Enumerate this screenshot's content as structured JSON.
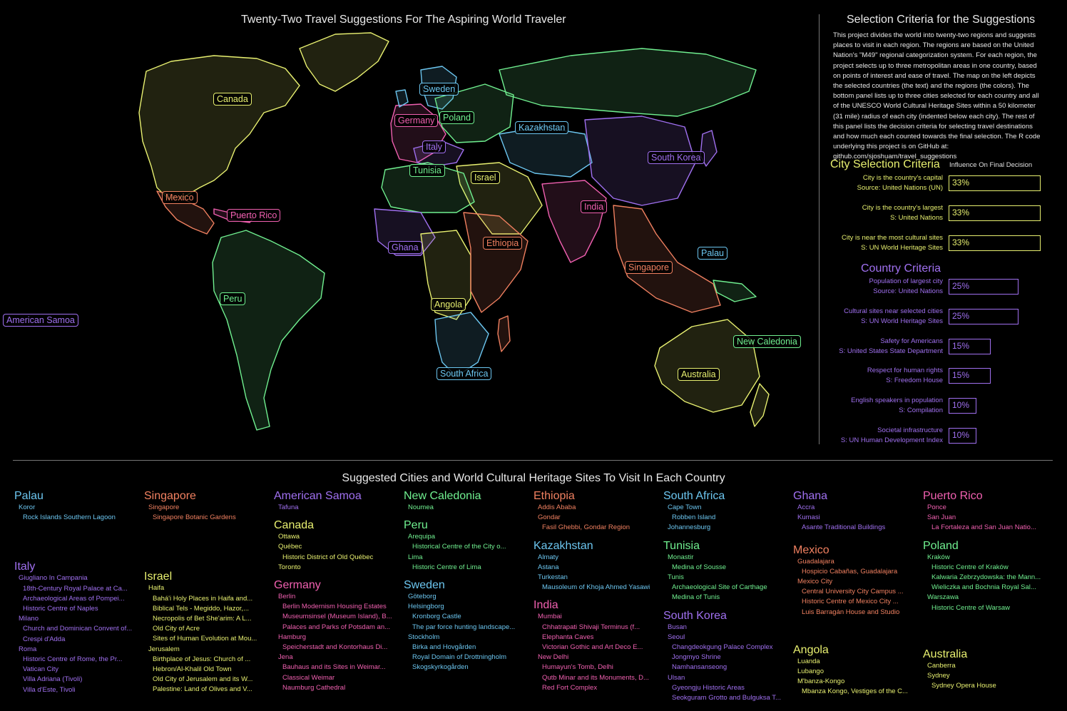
{
  "map": {
    "title": "Twenty-Two Travel Suggestions For The Aspiring World Traveler",
    "labels": [
      {
        "text": "Canada",
        "color": "#e8f070"
      },
      {
        "text": "Sweden",
        "color": "#6cc6f0"
      },
      {
        "text": "Germany",
        "color": "#f060b0"
      },
      {
        "text": "Poland",
        "color": "#70f090"
      },
      {
        "text": "Kazakhstan",
        "color": "#6cc6f0"
      },
      {
        "text": "Italy",
        "color": "#a070f0"
      },
      {
        "text": "South Korea",
        "color": "#a070f0"
      },
      {
        "text": "Tunisia",
        "color": "#70f090"
      },
      {
        "text": "Israel",
        "color": "#e8f070"
      },
      {
        "text": "Mexico",
        "color": "#f08060"
      },
      {
        "text": "Puerto Rico",
        "color": "#f060b0"
      },
      {
        "text": "India",
        "color": "#f060b0"
      },
      {
        "text": "Ghana",
        "color": "#a070f0"
      },
      {
        "text": "Ethiopia",
        "color": "#f08060"
      },
      {
        "text": "Palau",
        "color": "#6cc6f0"
      },
      {
        "text": "Singapore",
        "color": "#f08060"
      },
      {
        "text": "Peru",
        "color": "#70f090"
      },
      {
        "text": "Angola",
        "color": "#e8f070"
      },
      {
        "text": "American Samoa",
        "color": "#a070f0"
      },
      {
        "text": "New Caledonia",
        "color": "#70f090"
      },
      {
        "text": "Australia",
        "color": "#e8f070"
      },
      {
        "text": "South Africa",
        "color": "#6cc6f0"
      }
    ]
  },
  "panel": {
    "title": "Selection Criteria for the Suggestions",
    "description": "This project divides the world into twenty-two regions and suggests places to visit in each region.  The regions are based on the United Nation's \"M49\" regional categorization system.  For each region, the project selects up to three metropolitan areas in one country, based on points of interest and ease of travel.  The map on the left depicts the selected countries (the text) and the regions (the colors).  The bottom panel lists up to three cities selected for each country and all of the UNESCO World Cultural Heritage Sites within a 50 kilometer (31 mile) radius of each city (indented below each city).  The rest of this panel lists the decision criteria for selecting travel destinations and how much each counted towards the final selection. The R code underlying this project is on GitHub at: github.com/sjoshuam/travel_suggestions",
    "influence_header": "Influence On Final Decision",
    "city_criteria": {
      "title": "City Selection Criteria",
      "color": "#e8f070",
      "items": [
        {
          "line1": "City is the country's capital",
          "line2": "Source: United Nations (UN)",
          "value": "33%",
          "pct": 33
        },
        {
          "line1": "City is the country's largest",
          "line2": "S: United Nations",
          "value": "33%",
          "pct": 33
        },
        {
          "line1": "City is near the most cultural sites",
          "line2": "S: UN World Heritage Sites",
          "value": "33%",
          "pct": 33
        }
      ]
    },
    "country_criteria": {
      "title": "Country Criteria",
      "color": "#a070f0",
      "items": [
        {
          "line1": "Population of largest city",
          "line2": "Source: United Nations",
          "value": "25%",
          "pct": 25
        },
        {
          "line1": "Cultural sites near selected cities",
          "line2": "S: UN World Heritage Sites",
          "value": "25%",
          "pct": 25
        },
        {
          "line1": "Safety for Americans",
          "line2": "S: United States State Department",
          "value": "15%",
          "pct": 15
        },
        {
          "line1": "Respect for human rights",
          "line2": "S: Freedom House",
          "value": "15%",
          "pct": 15
        },
        {
          "line1": "English speakers in population",
          "line2": "S: Compilation",
          "value": "10%",
          "pct": 10
        },
        {
          "line1": "Societal infrastructure",
          "line2": "S: UN Human Development Index",
          "value": "10%",
          "pct": 10
        }
      ]
    }
  },
  "bottom": {
    "title": "Suggested Cities and World Cultural Heritage Sites To Visit In Each Country",
    "columns": [
      [
        {
          "name": "Palau",
          "color": "#6cc6f0",
          "cities": [
            {
              "city": "Koror",
              "sites": [
                "Rock Islands Southern Lagoon"
              ]
            }
          ]
        },
        {
          "name": "Italy",
          "color": "#a070f0",
          "spacer": true,
          "cities": [
            {
              "city": "Giugliano In Campania",
              "sites": [
                "18th-Century Royal Palace at Ca...",
                "Archaeological Areas of Pompei...",
                "Historic Centre of Naples"
              ]
            },
            {
              "city": "Milano",
              "sites": [
                "Church and Dominican Convent of...",
                "Crespi d'Adda"
              ]
            },
            {
              "city": "Roma",
              "sites": [
                "Historic Centre of Rome, the Pr...",
                "Vatican City",
                "Villa Adriana (Tivoli)",
                "Villa d'Este, Tivoli"
              ]
            }
          ]
        }
      ],
      [
        {
          "name": "Singapore",
          "color": "#f08060",
          "cities": [
            {
              "city": "Singapore",
              "sites": [
                "Singapore Botanic Gardens"
              ]
            }
          ]
        },
        {
          "name": "Israel",
          "color": "#e8f070",
          "spacer": true,
          "cities": [
            {
              "city": "Haifa",
              "sites": [
                "Bahá'i Holy Places in Haifa and...",
                "Biblical Tels - Megiddo, Hazor,...",
                "Necropolis of Bet She'arim: A L...",
                "Old City of Acre",
                "Sites of Human Evolution at Mou..."
              ]
            },
            {
              "city": "Jerusalem",
              "sites": [
                "Birthplace of Jesus: Church of ...",
                "Hebron/Al-Khalil Old Town",
                "Old City of Jerusalem and its W...",
                "Palestine: Land of Olives and V..."
              ]
            }
          ]
        }
      ],
      [
        {
          "name": "American Samoa",
          "color": "#a070f0",
          "cities": [
            {
              "city": "Tafuna",
              "sites": []
            }
          ]
        },
        {
          "name": "Canada",
          "color": "#e8f070",
          "cities": [
            {
              "city": "Ottawa",
              "sites": []
            },
            {
              "city": "Québec",
              "sites": [
                "Historic District of Old Québec"
              ]
            },
            {
              "city": "Toronto",
              "sites": []
            }
          ]
        },
        {
          "name": "Germany",
          "color": "#f060b0",
          "cities": [
            {
              "city": "Berlin",
              "sites": [
                "Berlin Modernism Housing Estates",
                "Museumsinsel (Museum Island), B...",
                "Palaces and Parks of Potsdam an..."
              ]
            },
            {
              "city": "Hamburg",
              "sites": [
                "Speicherstadt and Kontorhaus Di..."
              ]
            },
            {
              "city": "Jena",
              "sites": [
                "Bauhaus and its Sites in Weimar...",
                "Classical Weimar",
                "Naumburg Cathedral"
              ]
            }
          ]
        }
      ],
      [
        {
          "name": "New Caledonia",
          "color": "#70f090",
          "cities": [
            {
              "city": "Noumea",
              "sites": []
            }
          ]
        },
        {
          "name": "Peru",
          "color": "#70f090",
          "cities": [
            {
              "city": "Arequipa",
              "sites": [
                "Historical Centre of the City o..."
              ]
            },
            {
              "city": "Lima",
              "sites": [
                "Historic Centre of Lima"
              ]
            }
          ]
        },
        {
          "name": "Sweden",
          "color": "#6cc6f0",
          "cities": [
            {
              "city": "Göteborg",
              "sites": []
            },
            {
              "city": "Helsingborg",
              "sites": [
                "Kronborg Castle",
                "The par force hunting landscape..."
              ]
            },
            {
              "city": "Stockholm",
              "sites": [
                "Birka and Hovgården",
                "Royal Domain of Drottningholm",
                "Skogskyrkogården"
              ]
            }
          ]
        }
      ],
      [
        {
          "name": "Ethiopia",
          "color": "#f08060",
          "cities": [
            {
              "city": "Addis Ababa",
              "sites": []
            },
            {
              "city": "Gondar",
              "sites": [
                "Fasil Ghebbi, Gondar Region"
              ]
            }
          ]
        },
        {
          "name": "Kazakhstan",
          "color": "#6cc6f0",
          "cities": [
            {
              "city": "Almaty",
              "sites": []
            },
            {
              "city": "Astana",
              "sites": []
            },
            {
              "city": "Turkestan",
              "sites": [
                "Mausoleum of Khoja Ahmed Yasawi"
              ]
            }
          ]
        },
        {
          "name": "India",
          "color": "#f060b0",
          "cities": [
            {
              "city": "Mumbai",
              "sites": [
                "Chhatrapati Shivaji Terminus (f...",
                "Elephanta Caves",
                "Victorian Gothic and Art Deco E..."
              ]
            },
            {
              "city": "New Delhi",
              "sites": [
                "Humayun's Tomb, Delhi",
                "Qutb Minar and its Monuments, D...",
                "Red Fort Complex"
              ]
            }
          ]
        }
      ],
      [
        {
          "name": "South Africa",
          "color": "#6cc6f0",
          "cities": [
            {
              "city": "Cape Town",
              "sites": [
                "Robben Island"
              ]
            },
            {
              "city": "Johannesburg",
              "sites": []
            }
          ]
        },
        {
          "name": "Tunisia",
          "color": "#70f090",
          "cities": [
            {
              "city": "Monastir",
              "sites": [
                "Medina of Sousse"
              ]
            },
            {
              "city": "Tunis",
              "sites": [
                "Archaeological Site of Carthage",
                "Medina of Tunis"
              ]
            }
          ]
        },
        {
          "name": "South Korea",
          "color": "#a070f0",
          "cities": [
            {
              "city": "Busan",
              "sites": []
            },
            {
              "city": "Seoul",
              "sites": [
                "Changdeokgung Palace Complex",
                "Jongmyo Shrine",
                "Namhansanseong"
              ]
            },
            {
              "city": "Ulsan",
              "sites": [
                "Gyeongju Historic Areas",
                "Seokguram Grotto and Bulguksa T..."
              ]
            }
          ]
        }
      ],
      [
        {
          "name": "Ghana",
          "color": "#a070f0",
          "cities": [
            {
              "city": "Accra",
              "sites": []
            },
            {
              "city": "Kumasi",
              "sites": [
                "Asante Traditional Buildings"
              ]
            }
          ]
        },
        {
          "name": "Mexico",
          "color": "#f08060",
          "spacer": true,
          "cities": [
            {
              "city": "Guadalajara",
              "sites": [
                "Hospicio Cabañas, Guadalajara"
              ]
            },
            {
              "city": "Mexico City",
              "sites": [
                "Central University City Campus ...",
                "Historic Centre of Mexico City ...",
                "Luis Barragán House and Studio"
              ]
            }
          ]
        },
        {
          "name": "Angola",
          "color": "#e8f070",
          "spacer": true,
          "cities": [
            {
              "city": "Luanda",
              "sites": []
            },
            {
              "city": "Lubango",
              "sites": []
            },
            {
              "city": "M'banza-Kongo",
              "sites": [
                "Mbanza Kongo, Vestiges of the C..."
              ]
            }
          ]
        }
      ],
      [
        {
          "name": "Puerto Rico",
          "color": "#f060b0",
          "cities": [
            {
              "city": "Ponce",
              "sites": []
            },
            {
              "city": "San Juan",
              "sites": [
                "La Fortaleza and San Juan Natio..."
              ]
            }
          ]
        },
        {
          "name": "Poland",
          "color": "#70f090",
          "cities": [
            {
              "city": "Kraków",
              "sites": [
                "Historic Centre of Kraków",
                "Kalwaria Zebrzydowska: the Mann...",
                "Wieliczka and Bochnia Royal Sal..."
              ]
            },
            {
              "city": "Warszawa",
              "sites": [
                "Historic Centre of Warsaw"
              ]
            }
          ]
        },
        {
          "name": "Australia",
          "color": "#e8f070",
          "spacer": true,
          "cities": [
            {
              "city": "Canberra",
              "sites": []
            },
            {
              "city": "Sydney",
              "sites": [
                "Sydney Opera House"
              ]
            }
          ]
        }
      ]
    ]
  }
}
